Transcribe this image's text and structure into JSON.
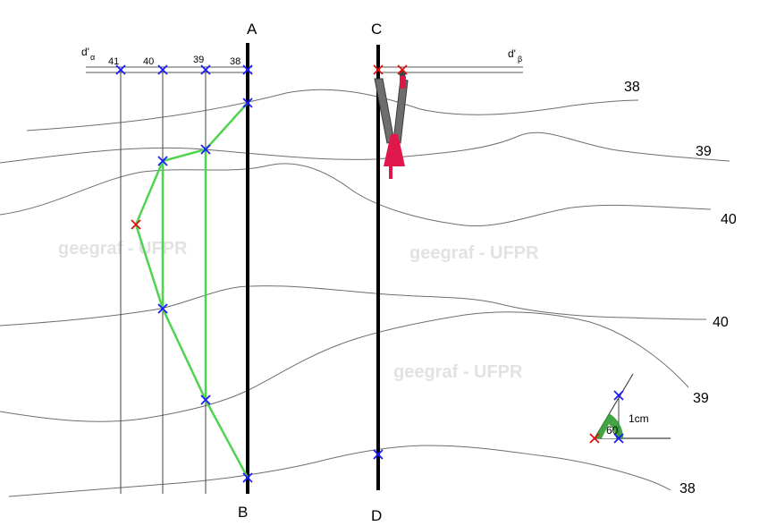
{
  "lines": {
    "a": "A",
    "b": "B",
    "c": "C",
    "d": "D"
  },
  "traces": {
    "alpha_label": "d'",
    "alpha_sub": "α",
    "beta_label": "d'",
    "beta_sub": "β",
    "alpha_ticks": [
      "41",
      "40",
      "39",
      "38"
    ]
  },
  "contours": {
    "top_38": "38",
    "upper_39": "39",
    "upper_40": "40",
    "lower_40": "40",
    "lower_39": "39",
    "bottom_38": "38"
  },
  "watermarks": [
    "geegraf - UFPR",
    "geegraf - UFPR",
    "geegraf - UFPR"
  ],
  "angle_tool": {
    "angle_label": "60",
    "length_label": "1cm"
  },
  "colors": {
    "construction": "#4fd44f",
    "marker_blue": "#1a1aff",
    "marker_red": "#e01010",
    "compass": "#e0174a",
    "contour": "#6e6e6e",
    "angle_fill": "#2e9a2e"
  }
}
